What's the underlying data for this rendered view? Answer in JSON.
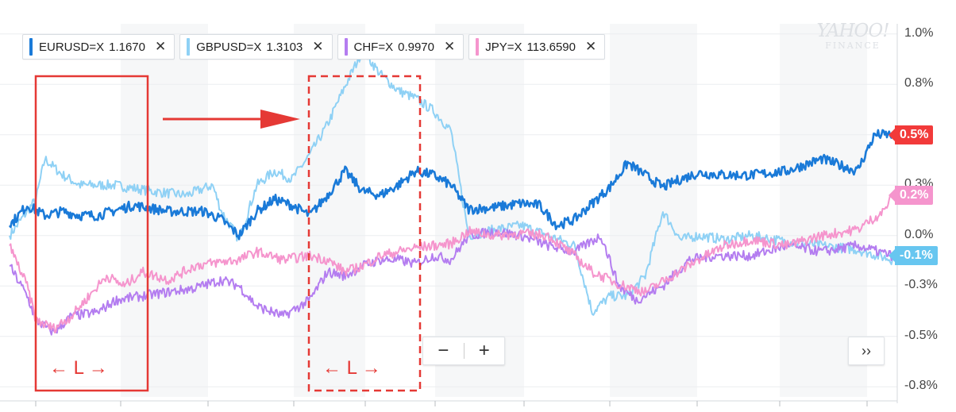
{
  "tickers": [
    {
      "symbol": "EURUSD=X",
      "price": "1.1670",
      "color": "#1a7ad8"
    },
    {
      "symbol": "GBPUSD=X",
      "price": "1.3103",
      "color": "#8fd1f5"
    },
    {
      "symbol": "CHF=X",
      "price": "0.9970",
      "color": "#b47df0"
    },
    {
      "symbol": "JPY=X",
      "price": "113.6590",
      "color": "#f595cd"
    }
  ],
  "close_glyph": "✕",
  "watermark": {
    "line1": "YAHOO!",
    "line2": "FINANCE"
  },
  "zoom": {
    "minus": "−",
    "plus": "+"
  },
  "expand_label": "››",
  "annotation": {
    "window_label": "← L →"
  },
  "chart_data": {
    "type": "line",
    "y_unit": "%",
    "ylim": [
      -0.8,
      1.05
    ],
    "yticks": [
      {
        "v": 1.0,
        "label": "1.0%"
      },
      {
        "v": 0.75,
        "label": "0.8%"
      },
      {
        "v": 0.5,
        "label": "0.5%"
      },
      {
        "v": 0.25,
        "label": "0.3%"
      },
      {
        "v": 0.0,
        "label": "0.0%"
      },
      {
        "v": -0.25,
        "label": "-0.3%"
      },
      {
        "v": -0.5,
        "label": "-0.5%"
      },
      {
        "v": -0.75,
        "label": "-0.8%"
      }
    ],
    "x_range": [
      0,
      100
    ],
    "grid": true,
    "series": [
      {
        "name": "GBPUSD=X",
        "color": "#8fd1f5",
        "last_value": "",
        "points": [
          [
            0,
            0.0
          ],
          [
            3,
            0.18
          ],
          [
            4,
            0.38
          ],
          [
            6,
            0.3
          ],
          [
            8,
            0.25
          ],
          [
            12,
            0.25
          ],
          [
            16,
            0.22
          ],
          [
            20,
            0.2
          ],
          [
            23,
            0.25
          ],
          [
            24,
            0.12
          ],
          [
            26,
            -0.02
          ],
          [
            28,
            0.25
          ],
          [
            30,
            0.32
          ],
          [
            32,
            0.28
          ],
          [
            34,
            0.4
          ],
          [
            36,
            0.55
          ],
          [
            38,
            0.74
          ],
          [
            40,
            0.92
          ],
          [
            42,
            0.8
          ],
          [
            44,
            0.72
          ],
          [
            46,
            0.68
          ],
          [
            48,
            0.62
          ],
          [
            50,
            0.52
          ],
          [
            52,
            0.0
          ],
          [
            55,
            0.03
          ],
          [
            58,
            0.05
          ],
          [
            61,
            0.0
          ],
          [
            64,
            -0.05
          ],
          [
            66,
            -0.38
          ],
          [
            68,
            -0.3
          ],
          [
            70,
            -0.3
          ],
          [
            72,
            -0.2
          ],
          [
            74,
            0.12
          ],
          [
            76,
            -0.02
          ],
          [
            78,
            0.0
          ],
          [
            81,
            -0.02
          ],
          [
            84,
            0.0
          ],
          [
            88,
            -0.03
          ],
          [
            92,
            -0.05
          ],
          [
            96,
            -0.07
          ],
          [
            100,
            -0.12
          ]
        ]
      },
      {
        "name": "EURUSD=X",
        "color": "#1a7ad8",
        "last_value": "",
        "points": [
          [
            0,
            0.05
          ],
          [
            2,
            0.15
          ],
          [
            4,
            0.1
          ],
          [
            6,
            0.12
          ],
          [
            8,
            0.1
          ],
          [
            10,
            0.1
          ],
          [
            14,
            0.15
          ],
          [
            18,
            0.12
          ],
          [
            22,
            0.12
          ],
          [
            24,
            0.08
          ],
          [
            26,
            0.0
          ],
          [
            28,
            0.12
          ],
          [
            30,
            0.18
          ],
          [
            32,
            0.15
          ],
          [
            34,
            0.1
          ],
          [
            36,
            0.2
          ],
          [
            38,
            0.32
          ],
          [
            40,
            0.22
          ],
          [
            42,
            0.2
          ],
          [
            44,
            0.25
          ],
          [
            46,
            0.32
          ],
          [
            48,
            0.3
          ],
          [
            50,
            0.25
          ],
          [
            52,
            0.13
          ],
          [
            55,
            0.14
          ],
          [
            58,
            0.16
          ],
          [
            60,
            0.15
          ],
          [
            62,
            0.05
          ],
          [
            64,
            0.08
          ],
          [
            66,
            0.16
          ],
          [
            68,
            0.24
          ],
          [
            70,
            0.36
          ],
          [
            72,
            0.3
          ],
          [
            74,
            0.24
          ],
          [
            76,
            0.28
          ],
          [
            78,
            0.31
          ],
          [
            81,
            0.3
          ],
          [
            84,
            0.3
          ],
          [
            88,
            0.32
          ],
          [
            92,
            0.38
          ],
          [
            96,
            0.32
          ],
          [
            98,
            0.5
          ],
          [
            100,
            0.5
          ]
        ]
      },
      {
        "name": "CHF=X",
        "color": "#b47df0",
        "last_value": "",
        "points": [
          [
            0,
            -0.15
          ],
          [
            2,
            -0.3
          ],
          [
            3,
            -0.42
          ],
          [
            5,
            -0.48
          ],
          [
            7,
            -0.4
          ],
          [
            10,
            -0.38
          ],
          [
            12,
            -0.32
          ],
          [
            15,
            -0.3
          ],
          [
            18,
            -0.28
          ],
          [
            21,
            -0.26
          ],
          [
            24,
            -0.22
          ],
          [
            26,
            -0.25
          ],
          [
            28,
            -0.35
          ],
          [
            31,
            -0.4
          ],
          [
            34,
            -0.32
          ],
          [
            36,
            -0.18
          ],
          [
            38,
            -0.2
          ],
          [
            40,
            -0.15
          ],
          [
            42,
            -0.12
          ],
          [
            44,
            -0.12
          ],
          [
            46,
            -0.14
          ],
          [
            48,
            -0.1
          ],
          [
            50,
            -0.12
          ],
          [
            52,
            0.0
          ],
          [
            55,
            0.02
          ],
          [
            58,
            0.0
          ],
          [
            61,
            -0.05
          ],
          [
            64,
            -0.08
          ],
          [
            67,
            0.0
          ],
          [
            69,
            -0.25
          ],
          [
            71,
            -0.32
          ],
          [
            74,
            -0.25
          ],
          [
            77,
            -0.12
          ],
          [
            80,
            -0.1
          ],
          [
            84,
            -0.1
          ],
          [
            88,
            -0.05
          ],
          [
            92,
            -0.08
          ],
          [
            96,
            -0.05
          ],
          [
            100,
            -0.1
          ]
        ]
      },
      {
        "name": "JPY=X",
        "color": "#f595cd",
        "last_value": "",
        "points": [
          [
            0,
            -0.05
          ],
          [
            2,
            -0.25
          ],
          [
            3,
            -0.42
          ],
          [
            5,
            -0.46
          ],
          [
            7,
            -0.4
          ],
          [
            9,
            -0.3
          ],
          [
            11,
            -0.2
          ],
          [
            13,
            -0.25
          ],
          [
            15,
            -0.18
          ],
          [
            18,
            -0.22
          ],
          [
            21,
            -0.15
          ],
          [
            24,
            -0.13
          ],
          [
            26,
            -0.12
          ],
          [
            28,
            -0.08
          ],
          [
            31,
            -0.12
          ],
          [
            34,
            -0.1
          ],
          [
            36,
            -0.12
          ],
          [
            38,
            -0.18
          ],
          [
            40,
            -0.15
          ],
          [
            42,
            -0.1
          ],
          [
            44,
            -0.08
          ],
          [
            46,
            -0.06
          ],
          [
            48,
            -0.05
          ],
          [
            50,
            -0.04
          ],
          [
            52,
            0.02
          ],
          [
            55,
            0.0
          ],
          [
            58,
            0.01
          ],
          [
            61,
            0.0
          ],
          [
            64,
            -0.1
          ],
          [
            66,
            -0.18
          ],
          [
            69,
            -0.24
          ],
          [
            72,
            -0.28
          ],
          [
            75,
            -0.2
          ],
          [
            78,
            -0.12
          ],
          [
            81,
            -0.05
          ],
          [
            84,
            -0.02
          ],
          [
            88,
            -0.05
          ],
          [
            92,
            0.0
          ],
          [
            96,
            0.03
          ],
          [
            99,
            0.12
          ],
          [
            100,
            0.2
          ]
        ]
      }
    ],
    "right_flags": [
      {
        "label": "0.5%",
        "value": 0.5,
        "color": "#f23a3a"
      },
      {
        "label": "0.2%",
        "value": 0.2,
        "color": "#f595cd"
      },
      {
        "label": "-0.1%",
        "value": -0.1,
        "color": "#67c6f0"
      }
    ]
  }
}
